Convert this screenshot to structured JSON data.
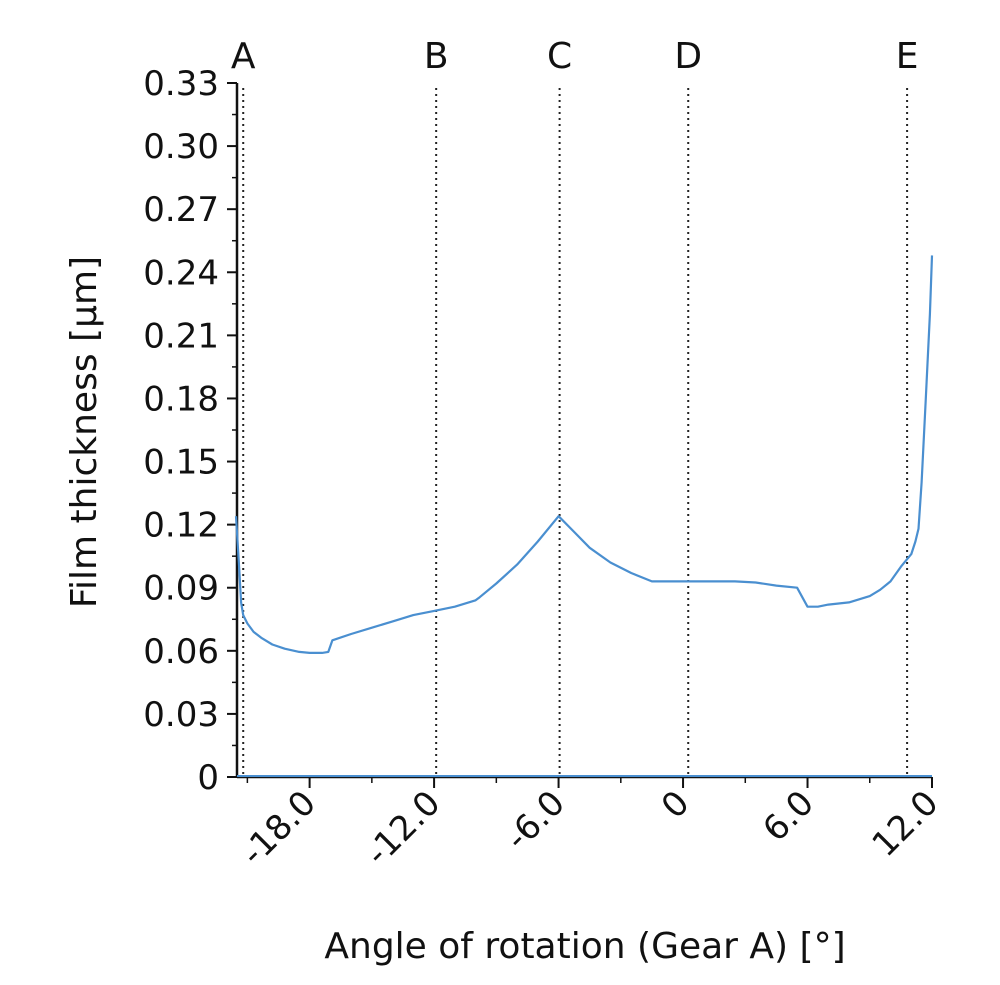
{
  "chart_data": {
    "type": "line",
    "title": "",
    "xlabel": "Angle of rotation (Gear A) [°]",
    "ylabel": "Film thickness [µm]",
    "xlim": [
      -21.5,
      12.0
    ],
    "ylim": [
      0,
      0.33
    ],
    "y_ticks": [
      0,
      0.03,
      0.06,
      0.09,
      0.12,
      0.15,
      0.18,
      0.21,
      0.24,
      0.27,
      0.3,
      0.33
    ],
    "y_tick_labels": [
      "0",
      "0.03",
      "0.06",
      "0.09",
      "0.12",
      "0.15",
      "0.18",
      "0.21",
      "0.24",
      "0.27",
      "0.30",
      "0.33"
    ],
    "x_ticks": [
      -18.0,
      -12.0,
      -6.0,
      0,
      6.0,
      12.0
    ],
    "x_tick_labels": [
      "-18.0",
      "-12.0",
      "-6.0",
      "0",
      "6.0",
      "12.0"
    ],
    "grid": false,
    "markers": [
      {
        "label": "A",
        "x": -21.2
      },
      {
        "label": "B",
        "x": -11.9
      },
      {
        "label": "C",
        "x": -5.95
      },
      {
        "label": "D",
        "x": 0.25
      },
      {
        "label": "E",
        "x": 10.8
      }
    ],
    "series": [
      {
        "color": "#4a8fd0",
        "x": [
          -21.55,
          -21.4,
          -21.3,
          -21.2,
          -21.0,
          -20.7,
          -20.3,
          -19.8,
          -19.2,
          -18.5,
          -18.0,
          -17.4,
          -17.1,
          -16.9,
          -16.0,
          -15.0,
          -14.0,
          -13.0,
          -12.0,
          -11.0,
          -10.0,
          -9.8,
          -9.0,
          -8.0,
          -7.0,
          -6.0,
          -5.3,
          -4.5,
          -3.5,
          -2.5,
          -1.5,
          -0.5,
          0.5,
          1.5,
          2.5,
          3.5,
          4.5,
          5.5,
          6.0,
          6.5,
          7.0,
          8.0,
          9.0,
          9.5,
          10.0,
          10.5,
          11.0,
          11.2,
          11.35,
          11.5,
          11.7,
          11.9,
          12.0
        ],
        "y": [
          0.124,
          0.1,
          0.083,
          0.077,
          0.073,
          0.069,
          0.066,
          0.063,
          0.061,
          0.0595,
          0.059,
          0.059,
          0.0595,
          0.065,
          0.068,
          0.071,
          0.074,
          0.077,
          0.079,
          0.081,
          0.084,
          0.0855,
          0.092,
          0.101,
          0.112,
          0.124,
          0.117,
          0.109,
          0.102,
          0.097,
          0.093,
          0.093,
          0.093,
          0.093,
          0.093,
          0.0925,
          0.091,
          0.09,
          0.081,
          0.081,
          0.082,
          0.083,
          0.086,
          0.089,
          0.093,
          0.1,
          0.106,
          0.112,
          0.118,
          0.14,
          0.18,
          0.22,
          0.248
        ]
      }
    ]
  }
}
